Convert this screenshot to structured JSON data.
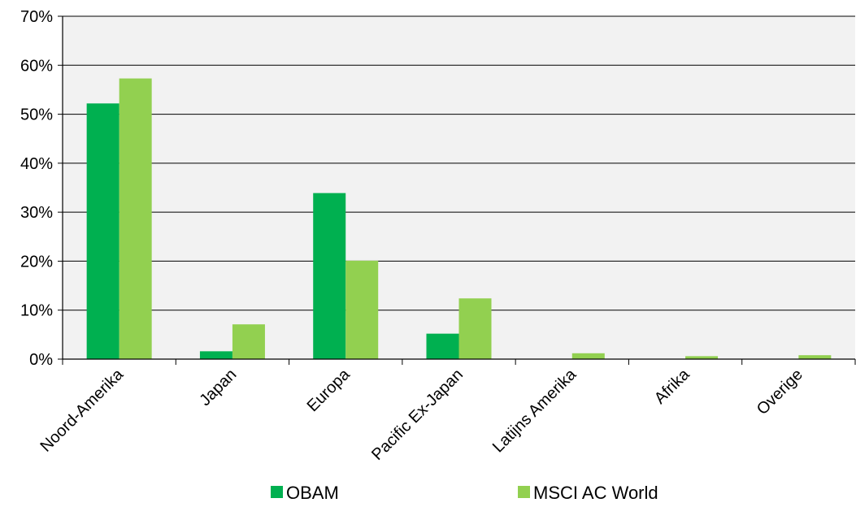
{
  "chart_data": {
    "type": "bar",
    "categories": [
      "Noord-Amerika",
      "Japan",
      "Europa",
      "Pacific Ex-Japan",
      "Latijns Amerika",
      "Afrika",
      "Overige"
    ],
    "series": [
      {
        "name": "OBAM",
        "values": [
          52.2,
          1.6,
          33.9,
          5.2,
          0,
          0,
          0
        ],
        "color": "#00b050"
      },
      {
        "name": "MSCI AC World",
        "values": [
          57.3,
          7.1,
          20.1,
          12.4,
          1.2,
          0.6,
          0.8
        ],
        "color": "#92d050"
      }
    ],
    "y_ticks": [
      "0%",
      "10%",
      "20%",
      "30%",
      "40%",
      "50%",
      "60%",
      "70%"
    ],
    "ylim": [
      0,
      70
    ],
    "grid": true,
    "legend_position": "bottom",
    "plot_background": "#f2f2f2",
    "gridline_color": "#000000"
  }
}
